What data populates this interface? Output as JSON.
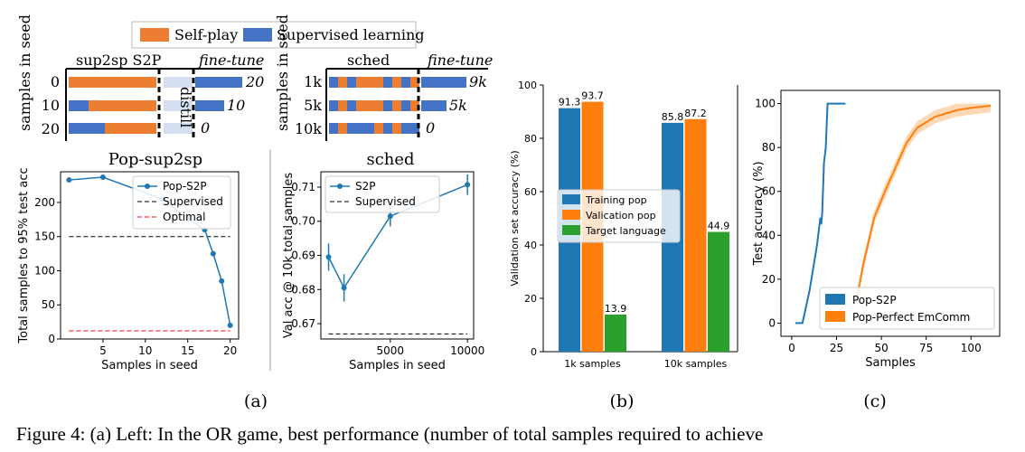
{
  "top_legend": {
    "self_play": "Self-play",
    "supervised": "Supervised learning"
  },
  "colors": {
    "orange": "#ED7D31",
    "blue": "#4472C4",
    "mpl_blue": "#1f77b4",
    "mpl_orange": "#ff7f0e",
    "mpl_green": "#2ca02c",
    "light_blue": "#d4dff2"
  },
  "sup2sp": {
    "title": "sup2sp S2P",
    "finetune": "fine-tune",
    "distill": "distill",
    "ylabel": "samples in seed",
    "rows": [
      {
        "seed": "0",
        "result": "20"
      },
      {
        "seed": "10",
        "result": "10"
      },
      {
        "seed": "20",
        "result": "0"
      }
    ]
  },
  "sched": {
    "title": "sched",
    "finetune": "fine-tune",
    "ylabel": "samples in seed",
    "rows": [
      {
        "seed": "1k",
        "result": "9k"
      },
      {
        "seed": "5k",
        "result": "5k"
      },
      {
        "seed": "10k",
        "result": "0"
      }
    ]
  },
  "panel_labels": {
    "a": "(a)",
    "b": "(b)",
    "c": "(c)"
  },
  "caption": "Figure 4: (a) Left: In the OR game, best performance (number of total samples required to achieve",
  "chart_data": [
    {
      "type": "line",
      "title": "Pop-sup2sp",
      "xlabel": "Samples in seed",
      "ylabel": "Total samples to 95% test acc",
      "xlim": [
        0,
        21
      ],
      "ylim": [
        0,
        245
      ],
      "xticks": [
        5,
        10,
        15,
        20
      ],
      "yticks": [
        0,
        50,
        100,
        150,
        200
      ],
      "legend": {
        "position": "top-right",
        "entries": [
          "Pop-S2P",
          "Supervised",
          "Optimal"
        ]
      },
      "series": [
        {
          "name": "Pop-S2P",
          "x": [
            1,
            5,
            12,
            15,
            17,
            18,
            19,
            20
          ],
          "y": [
            233,
            237,
            205,
            177,
            160,
            125,
            85,
            20
          ]
        },
        {
          "name": "Supervised",
          "constant": 150
        },
        {
          "name": "Optimal",
          "constant": 12
        }
      ]
    },
    {
      "type": "line",
      "title": "sched",
      "xlabel": "Samples in seed",
      "ylabel": "Val acc @ 10k total samples",
      "xlim": [
        500,
        10400
      ],
      "ylim": [
        0.6655,
        0.7145
      ],
      "xticks": [
        5000,
        10000
      ],
      "yticks": [
        0.67,
        0.68,
        0.69,
        0.7,
        0.71
      ],
      "legend": {
        "position": "top-left",
        "entries": [
          "S2P",
          "Supervised"
        ]
      },
      "series": [
        {
          "name": "S2P",
          "x": [
            1000,
            2000,
            5000,
            10000
          ],
          "y": [
            0.6895,
            0.6805,
            0.7015,
            0.7107
          ],
          "err": [
            0.004,
            0.004,
            0.003,
            0.003
          ]
        },
        {
          "name": "Supervised",
          "constant": 0.667
        }
      ]
    },
    {
      "type": "bar",
      "ylabel": "Validation set accuracy (%)",
      "categories": [
        "1k samples",
        "10k samples"
      ],
      "ylim": [
        0,
        100
      ],
      "yticks": [
        0,
        20,
        40,
        60,
        80,
        100
      ],
      "legend": {
        "position": "center",
        "entries": [
          "Training pop",
          "Valication pop",
          "Target language"
        ]
      },
      "series": [
        {
          "name": "Training pop",
          "values": [
            91.3,
            85.8
          ]
        },
        {
          "name": "Valication pop",
          "values": [
            93.7,
            87.2
          ]
        },
        {
          "name": "Target language",
          "values": [
            13.9,
            44.9
          ]
        }
      ]
    },
    {
      "type": "line",
      "xlabel": "Samples",
      "ylabel": "Test accuracy (%)",
      "xlim": [
        -6,
        116
      ],
      "ylim": [
        -6,
        106
      ],
      "xticks": [
        0,
        25,
        50,
        75,
        100
      ],
      "yticks": [
        0,
        20,
        40,
        60,
        80,
        100
      ],
      "legend": {
        "position": "bottom-right",
        "entries": [
          "Pop-S2P",
          "Pop-Perfect EmComm"
        ]
      },
      "series": [
        {
          "name": "Pop-S2P",
          "x": [
            2,
            6,
            10,
            12,
            14,
            16,
            16.5,
            17,
            18,
            19,
            20,
            21,
            22,
            24,
            30
          ],
          "y": [
            0,
            0,
            15,
            25,
            35,
            48,
            45,
            50,
            73,
            80,
            100,
            100,
            100,
            100,
            100
          ]
        },
        {
          "name": "Pop-Perfect EmComm",
          "x": [
            36,
            40,
            46,
            52,
            58,
            64,
            70,
            80,
            92,
            100,
            111
          ],
          "y": [
            10,
            27,
            48,
            60,
            71,
            82,
            89,
            94,
            97,
            98,
            99
          ]
        }
      ]
    }
  ]
}
